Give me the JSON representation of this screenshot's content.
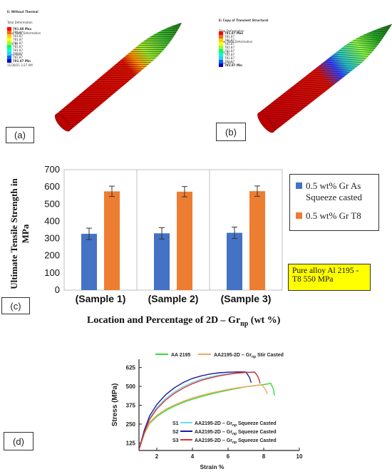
{
  "panel_a": {
    "label": "(a)",
    "header_lines": [
      "E: Without Thermal",
      "Total Deformation",
      "Type: Total Deformation",
      "Unit: m",
      "Time: 15 s",
      "11/30/21 2:27 AM"
    ],
    "legend_values": [
      "781.88 Max",
      "781.87",
      "781.87",
      "781.87",
      "781.87",
      "781.87",
      "781.87",
      "781.87",
      "781.87",
      "781.87 Min"
    ]
  },
  "panel_b": {
    "label": "(b)",
    "header_lines": [
      "E: Copy of Transient Structural",
      "Total Deformation",
      "Type: Total Deformation",
      "Unit: m",
      "Time: 15 s"
    ],
    "legend_values": [
      "781.87 Max",
      "781.87",
      "781.87",
      "781.87",
      "781.87",
      "781.87",
      "781.87",
      "781.87",
      "781.87",
      "781.87 Min"
    ]
  },
  "colormap": [
    "#ff0000",
    "#ff6600",
    "#ffcc00",
    "#ffff00",
    "#99ff33",
    "#00ff66",
    "#00ffcc",
    "#33ccff",
    "#0066ff",
    "#0000cc"
  ],
  "panel_c": {
    "label": "(c)",
    "note": "Pure alloy Al 2195 - T8 550 MPa",
    "chart_data": {
      "type": "bar",
      "categories": [
        "(Sample 1)",
        "(Sample 2)",
        "(Sample 3)"
      ],
      "series": [
        {
          "name": "0.5 wt% Gr As Squeeze casted",
          "color": "#4472c4",
          "values": [
            327,
            330,
            333
          ],
          "errors": [
            33,
            33,
            33
          ]
        },
        {
          "name": "0.5 wt% Gr T8",
          "color": "#ed7d31",
          "values": [
            574,
            572,
            575
          ],
          "errors": [
            30,
            30,
            30
          ]
        }
      ],
      "yticks": [
        "0",
        "100",
        "200",
        "300",
        "400",
        "500",
        "600",
        "700"
      ],
      "ylim": [
        0,
        700
      ],
      "ylabel_lines": [
        "Ultimate Tensile Strength in",
        "MPa"
      ],
      "xlabel_main": "Location and Percentage of 2D – Gr",
      "xlabel_sub": "np",
      "xlabel_tail": " (wt %)"
    }
  },
  "panel_d": {
    "label": "(d)",
    "chart_data": {
      "type": "line",
      "xlabel": "Strain %",
      "ylabel": "Stress (MPa)",
      "xticks": [
        "2",
        "4",
        "6",
        "8",
        "10"
      ],
      "yticks": [
        "125",
        "250",
        "375",
        "500",
        "625"
      ],
      "xlim": [
        1,
        10
      ],
      "ylim": [
        75,
        680
      ],
      "legend_top": [
        {
          "name": "AA 2195",
          "color": "#33dd33"
        },
        {
          "name_main": "AA2195-2D – Gr",
          "name_sub": "np",
          "name_tail": " Stir Casted",
          "color": "#f4a460"
        }
      ],
      "legend_bottom": [
        {
          "prefix": "S1",
          "name_main": "AA2195-2D – Gr",
          "name_sub": "np",
          "name_tail": " Squeeze Casted",
          "color": "#66e0ff"
        },
        {
          "prefix": "S2",
          "name_main": "AA2195-2D – Gr",
          "name_sub": "np",
          "name_tail": " Squeeze Casted",
          "color": "#1a1aa6"
        },
        {
          "prefix": "S3",
          "name_main": "AA2195-2D – Gr",
          "name_sub": "np",
          "name_tail": " Squeeze Casted",
          "color": "#e03030"
        }
      ],
      "series": [
        {
          "name": "AA 2195",
          "color": "#33dd33",
          "x": [
            1.0,
            1.3,
            1.6,
            2.0,
            2.5,
            3.0,
            3.5,
            4.0,
            4.5,
            5.0,
            5.5,
            6.0,
            6.5,
            7.0,
            7.5,
            8.0,
            8.4,
            8.55,
            8.6
          ],
          "y": [
            80,
            185,
            255,
            300,
            340,
            370,
            395,
            415,
            433,
            448,
            462,
            475,
            486,
            497,
            505,
            512,
            520,
            480,
            440
          ]
        },
        {
          "name": "AA2195-2D – Grnp Stir Casted",
          "color": "#f4a460",
          "x": [
            1.0,
            1.3,
            1.6,
            2.0,
            2.5,
            3.0,
            3.5,
            4.0,
            4.5,
            5.0,
            5.5,
            6.0,
            6.5,
            7.0,
            7.5,
            7.9,
            8.1,
            8.2
          ],
          "y": [
            80,
            190,
            262,
            308,
            348,
            378,
            402,
            423,
            440,
            455,
            468,
            480,
            490,
            498,
            505,
            510,
            480,
            450
          ]
        },
        {
          "name": "S1 AA2195-2D – Grnp Squeeze Casted",
          "color": "#66e0ff",
          "x": [
            1.0,
            1.3,
            1.6,
            2.0,
            2.5,
            3.0,
            3.5,
            4.0,
            4.5,
            5.0,
            5.5,
            6.0,
            6.5,
            7.0,
            7.5,
            7.7,
            7.8
          ],
          "y": [
            80,
            200,
            290,
            360,
            420,
            465,
            500,
            527,
            548,
            563,
            575,
            584,
            590,
            594,
            596,
            560,
            520
          ]
        },
        {
          "name": "S2 AA2195-2D – Grnp Squeeze Casted",
          "color": "#1a1aa6",
          "x": [
            1.0,
            1.3,
            1.6,
            2.0,
            2.5,
            3.0,
            3.5,
            4.0,
            4.5,
            5.0,
            5.5,
            6.0,
            6.5,
            7.0,
            7.2,
            7.3
          ],
          "y": [
            80,
            210,
            305,
            380,
            445,
            492,
            527,
            553,
            570,
            582,
            590,
            594,
            596,
            595,
            560,
            525
          ]
        },
        {
          "name": "S3 AA2195-2D – Grnp Squeeze Casted",
          "color": "#e03030",
          "x": [
            1.0,
            1.3,
            1.6,
            2.0,
            2.5,
            3.0,
            3.5,
            4.0,
            4.5,
            5.0,
            5.5,
            6.0,
            6.5,
            7.0,
            7.5,
            7.7,
            7.8
          ],
          "y": [
            80,
            195,
            282,
            350,
            410,
            455,
            490,
            518,
            540,
            556,
            570,
            580,
            588,
            592,
            594,
            560,
            520
          ]
        }
      ]
    }
  }
}
